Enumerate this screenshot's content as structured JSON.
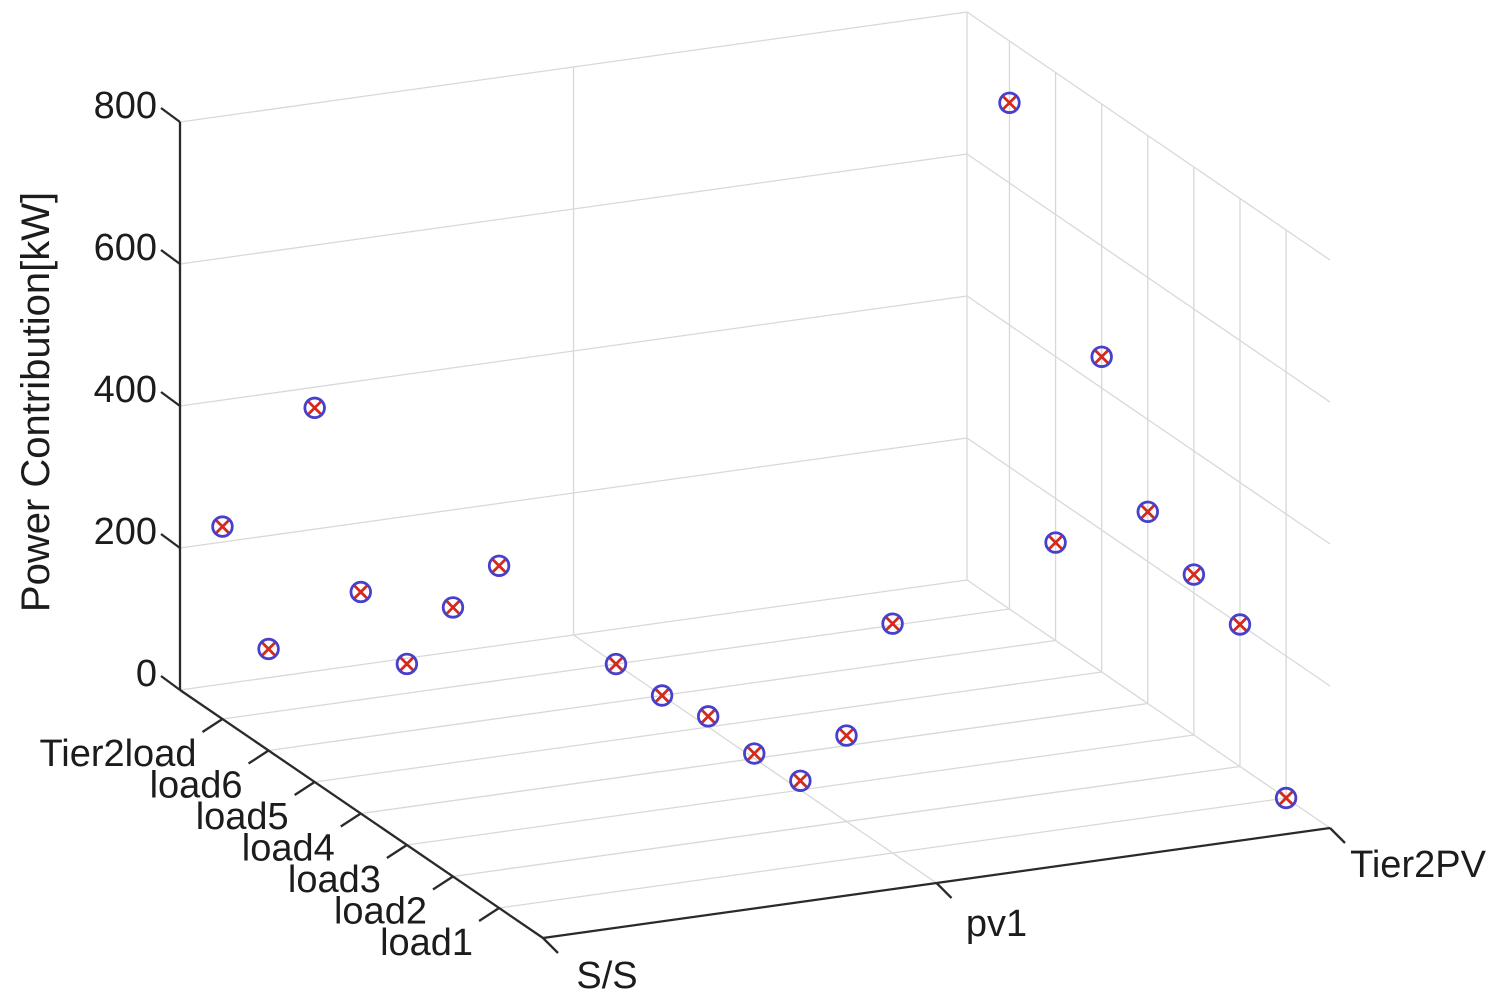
{
  "chart_data": {
    "type": "scatter",
    "projection": "3d",
    "title": "",
    "zlabel": "Power Contribution[kW]",
    "x_axis_categories": [
      "S/S",
      "pv1",
      "Tier2PV"
    ],
    "y_axis_categories": [
      "load1",
      "load2",
      "load3",
      "load4",
      "load5",
      "load6",
      "Tier2load"
    ],
    "z_ticks": [
      "0",
      "200",
      "400",
      "600",
      "800"
    ],
    "zlim": [
      0,
      800
    ],
    "grid": true,
    "legend_position": "none",
    "marker_style": "blue circle with red x-cross",
    "series": [
      {
        "name": "S/S",
        "values_kw": [
          482,
          379,
          255,
          312,
          527,
          143,
          271
        ]
      },
      {
        "name": "pv1",
        "values_kw": [
          323,
          121,
          13,
          7,
          15,
          0,
          0
        ]
      },
      {
        "name": "Tier2PV",
        "values_kw": [
          0,
          200,
          226,
          270,
          444,
          138,
          713
        ]
      }
    ],
    "colors": {
      "marker_edge": "#4840c8",
      "marker_cross": "#d42a1e",
      "axis": "#2a2a2a",
      "grid": "#d8d8d8",
      "background": "#ffffff"
    }
  }
}
